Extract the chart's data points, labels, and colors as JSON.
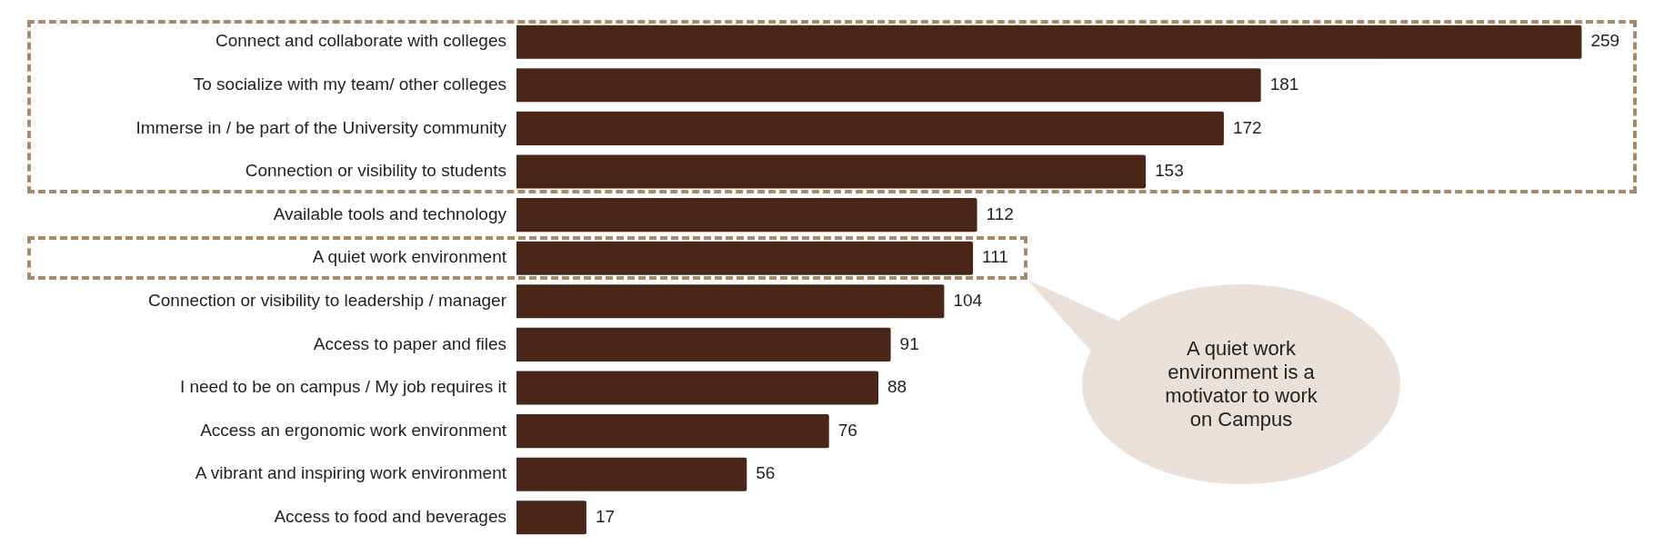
{
  "chart_data": {
    "type": "bar",
    "orientation": "horizontal",
    "categories": [
      "Connect and collaborate with colleges",
      "To socialize with my team/ other colleges",
      "Immerse in / be part of the University community",
      "Connection or visibility to students",
      "Available tools and technology",
      "A quiet work environment",
      "Connection or visibility to leadership / manager",
      "Access to paper and files",
      "I need to be on campus / My job requires it",
      "Access an ergonomic work environment",
      "A vibrant and inspiring work environment",
      "Access to food and beverages"
    ],
    "values": [
      259,
      181,
      172,
      153,
      112,
      111,
      104,
      91,
      88,
      76,
      56,
      17
    ],
    "color": "#4a2619",
    "data_labels": true,
    "annotations": [
      "A quiet work environment is a motivator to work on Campus"
    ]
  }
}
